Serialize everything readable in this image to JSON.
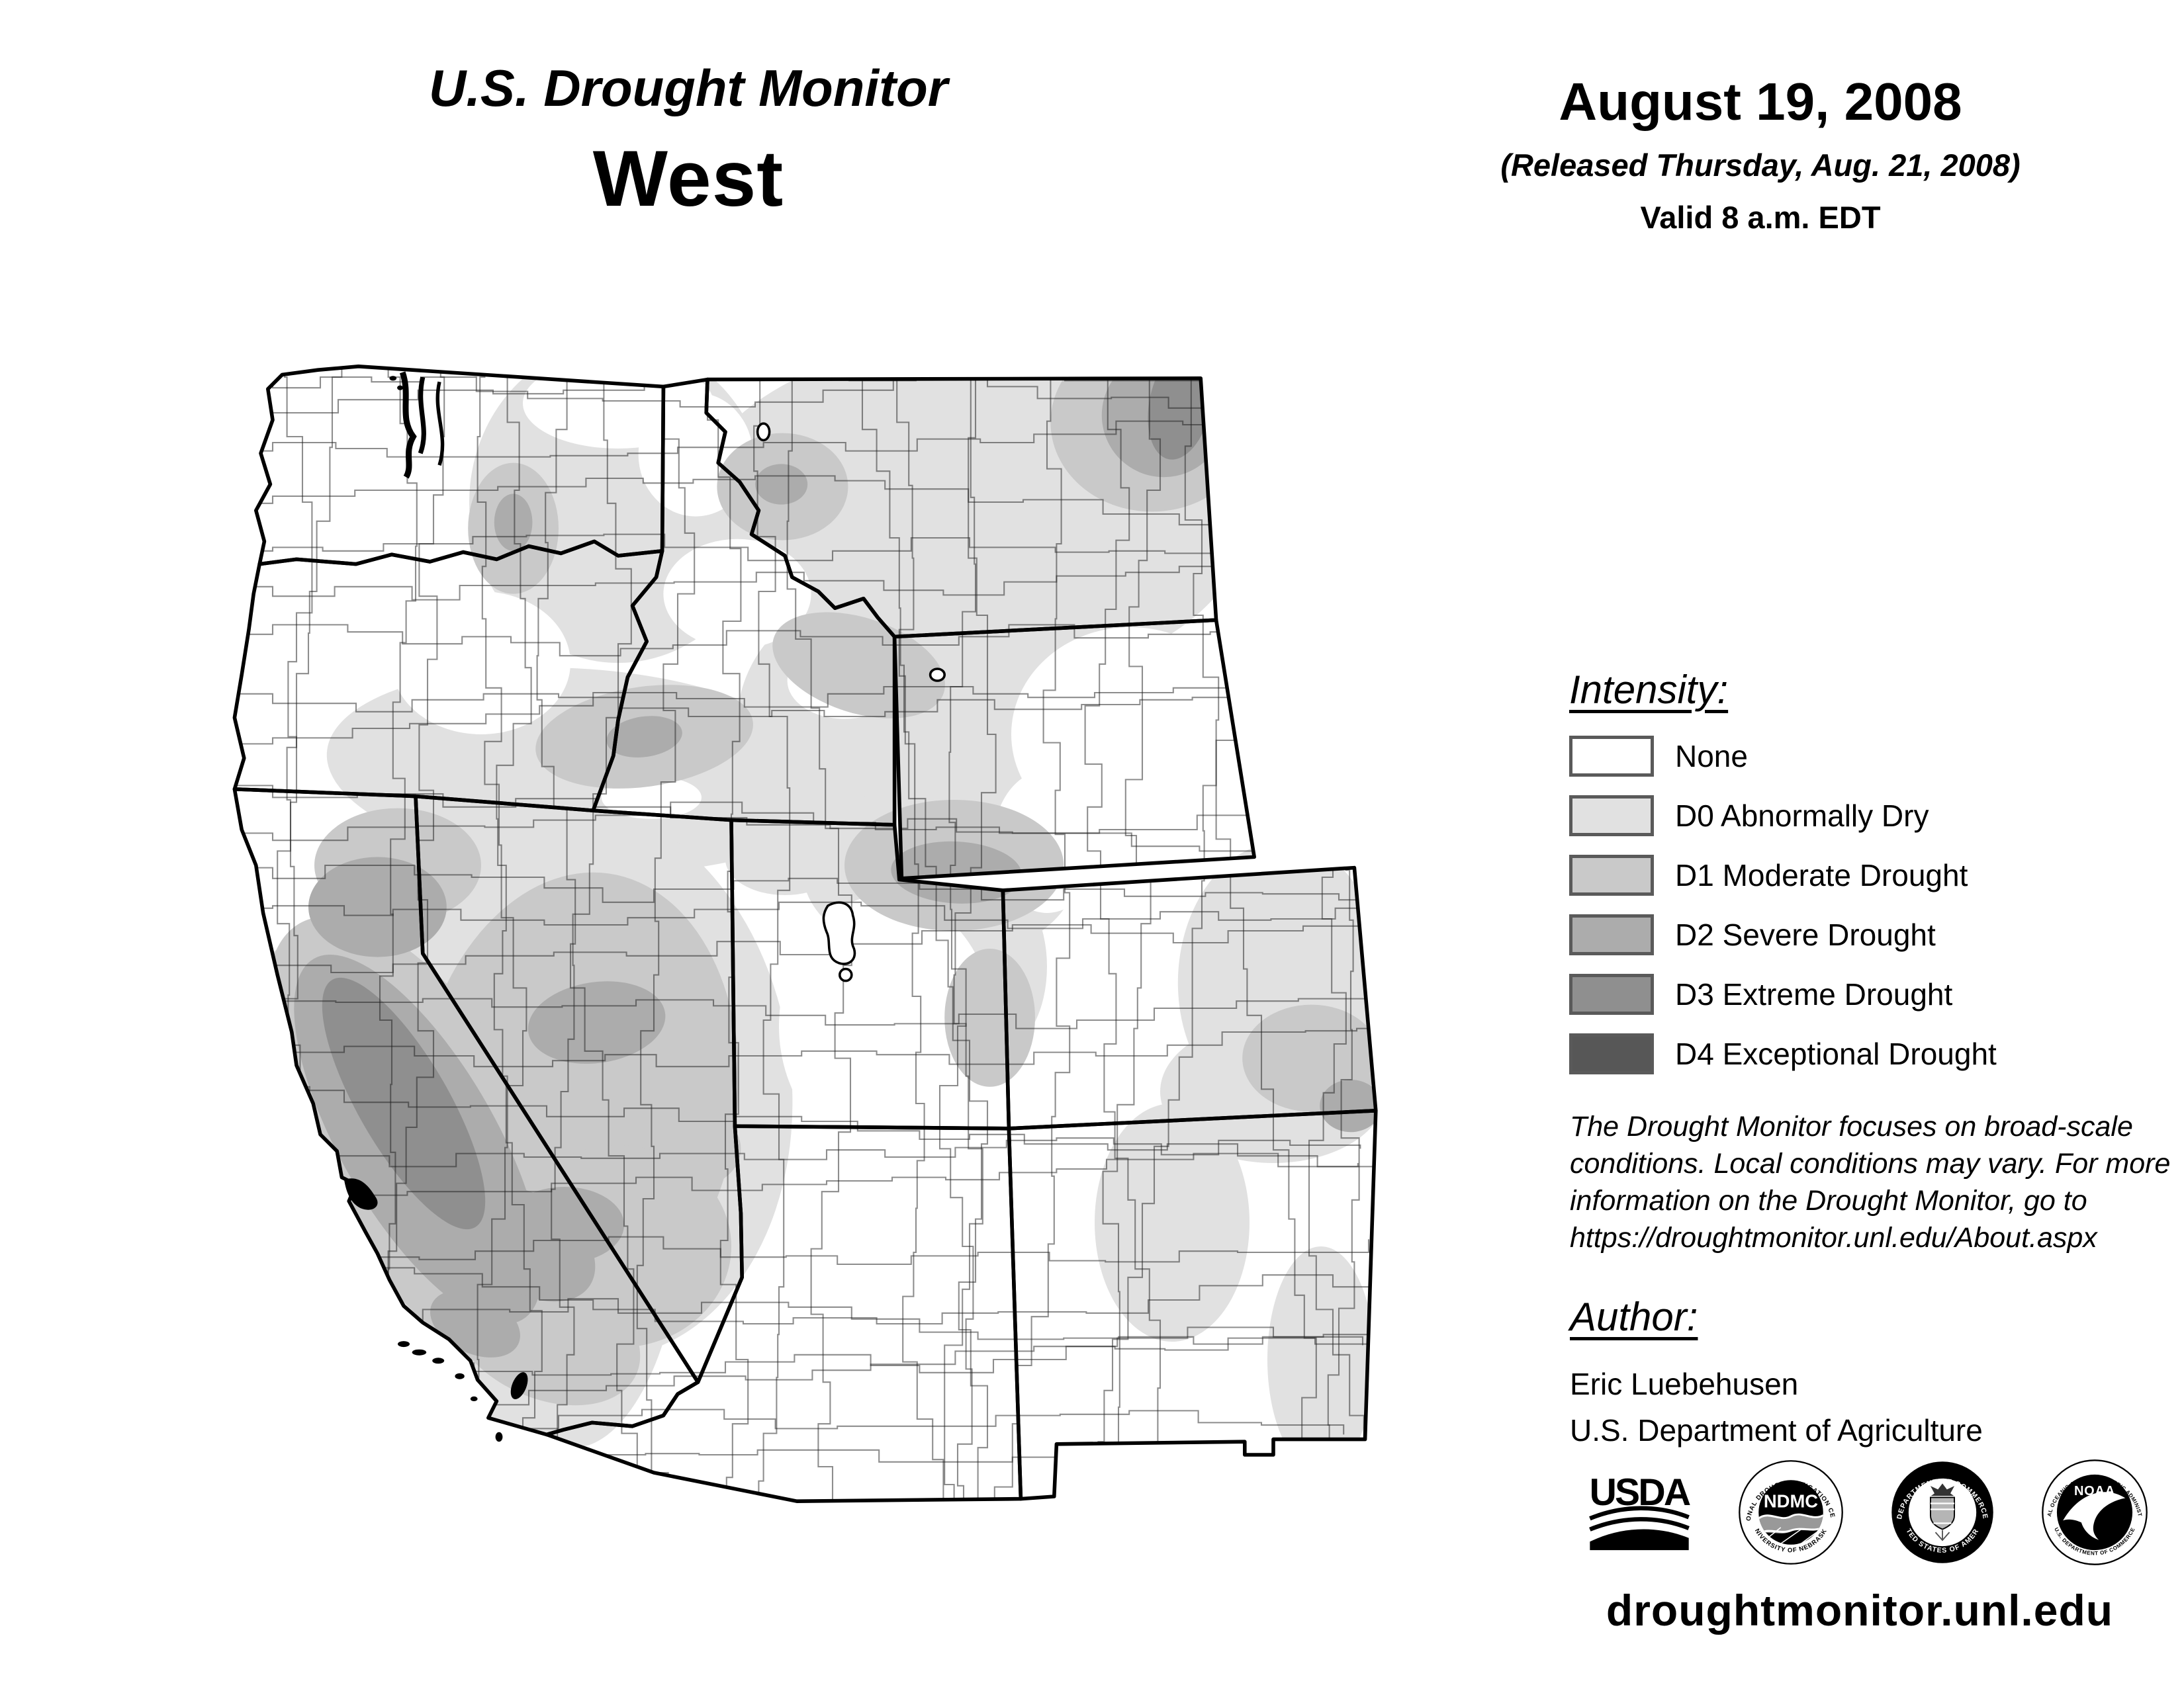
{
  "header": {
    "title": "U.S. Drought Monitor",
    "region": "West"
  },
  "date_block": {
    "date": "August 19, 2008",
    "released": "(Released Thursday, Aug. 21, 2008)",
    "valid": "Valid 8 a.m. EDT"
  },
  "legend": {
    "heading": "Intensity:",
    "items": [
      {
        "code": "none",
        "label": "None",
        "color": "#ffffff"
      },
      {
        "code": "D0",
        "label": "D0 Abnormally Dry",
        "color": "#e1e1e1"
      },
      {
        "code": "D1",
        "label": "D1 Moderate Drought",
        "color": "#c9c9c9"
      },
      {
        "code": "D2",
        "label": "D2 Severe Drought",
        "color": "#acacac"
      },
      {
        "code": "D3",
        "label": "D3 Extreme Drought",
        "color": "#8f8f8f"
      },
      {
        "code": "D4",
        "label": "D4 Exceptional Drought",
        "color": "#575757"
      }
    ]
  },
  "disclaimer": "The Drought Monitor focuses on broad-scale conditions. Local conditions may vary. For more information on the Drought Monitor, go to https://droughtmonitor.unl.edu/About.aspx",
  "author": {
    "heading": "Author:",
    "name": "Eric Luebehusen",
    "org": "U.S. Department of Agriculture"
  },
  "logos": {
    "usda": {
      "text": "USDA"
    },
    "ndmc": {
      "text": "NDMC",
      "ring_top": "NATIONAL DROUGHT MITIGATION CENTER",
      "ring_bottom": "UNIVERSITY OF NEBRASKA"
    },
    "doc": {
      "ring_top": "DEPARTMENT OF COMMERCE",
      "ring_bottom": "UNITED STATES OF AMERICA"
    },
    "noaa": {
      "text": "NOAA",
      "ring_top": "NATIONAL OCEANIC AND ATMOSPHERIC ADMINISTRATION",
      "ring_bottom": "U.S. DEPARTMENT OF COMMERCE"
    }
  },
  "footer": {
    "url": "droughtmonitor.unl.edu"
  },
  "map": {
    "region_states": [
      "Washington",
      "Oregon",
      "California",
      "Nevada",
      "Idaho",
      "Montana",
      "Wyoming",
      "Utah",
      "Colorado",
      "Arizona",
      "New Mexico"
    ],
    "levels_depicted": [
      "None",
      "D0",
      "D1",
      "D2",
      "D3"
    ]
  }
}
